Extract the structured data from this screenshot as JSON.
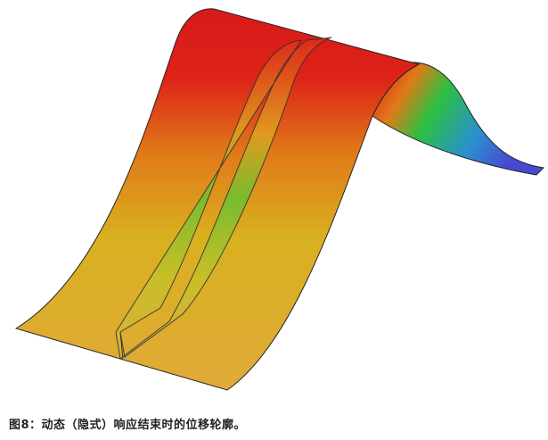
{
  "figure": {
    "description_icon": "displacement-contour-plot",
    "colors": {
      "high": "#d81b1b",
      "mid": "#e0a020",
      "low": "#d4b030",
      "green": "#2cc040",
      "blue": "#4050d0",
      "edge": "#222222"
    }
  },
  "caption": "图8：动态（隐式）响应结束时的位移轮廓。"
}
